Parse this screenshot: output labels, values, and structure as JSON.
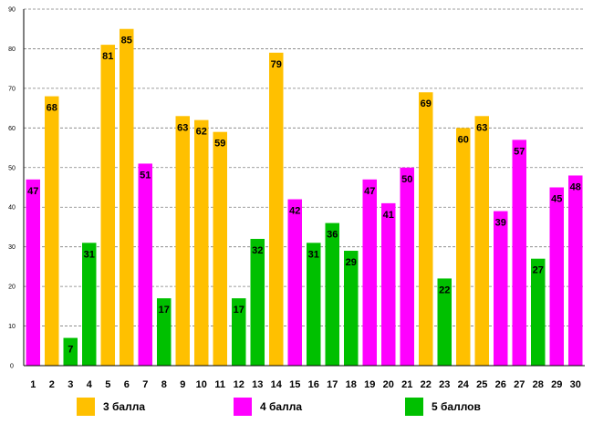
{
  "chart_data": {
    "type": "bar",
    "categories": [
      "1",
      "2",
      "3",
      "4",
      "5",
      "6",
      "7",
      "8",
      "9",
      "10",
      "11",
      "12",
      "13",
      "14",
      "15",
      "16",
      "17",
      "18",
      "19",
      "20",
      "21",
      "22",
      "23",
      "24",
      "25",
      "26",
      "27",
      "28",
      "29",
      "30"
    ],
    "values": [
      47,
      68,
      7,
      31,
      81,
      85,
      51,
      17,
      63,
      62,
      59,
      17,
      32,
      79,
      42,
      31,
      36,
      29,
      47,
      41,
      50,
      69,
      22,
      60,
      63,
      39,
      57,
      27,
      45,
      48
    ],
    "groups": [
      "4 балла",
      "3 балла",
      "5 баллов",
      "5 баллов",
      "3 балла",
      "3 балла",
      "4 балла",
      "5 баллов",
      "3 балла",
      "3 балла",
      "3 балла",
      "5 баллов",
      "5 баллов",
      "3 балла",
      "4 балла",
      "5 баллов",
      "5 баллов",
      "5 баллов",
      "4 балла",
      "4 балла",
      "4 балла",
      "3 балла",
      "5 баллов",
      "3 балла",
      "3 балла",
      "4 балла",
      "4 балла",
      "5 баллов",
      "4 балла",
      "4 балла"
    ],
    "legend": [
      {
        "label": "3 балла",
        "color": "#FFC000"
      },
      {
        "label": "4 балла",
        "color": "#FF00FF"
      },
      {
        "label": "5 баллов",
        "color": "#00C000"
      }
    ],
    "ylim": [
      0,
      90
    ],
    "yticks": [
      0,
      10,
      20,
      30,
      40,
      50,
      60,
      70,
      80,
      90
    ],
    "grid": true,
    "title": "",
    "xlabel": "",
    "ylabel": ""
  }
}
